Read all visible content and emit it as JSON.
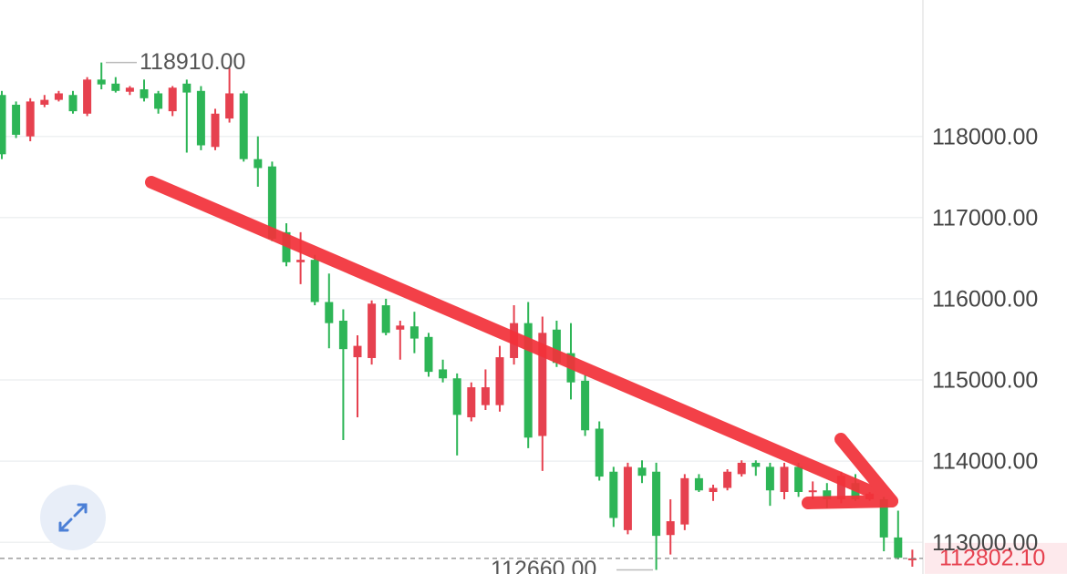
{
  "chart_data": {
    "type": "candlestick",
    "up_color": "#e6414f",
    "down_color": "#2db556",
    "ylim": [
      112610,
      119680
    ],
    "yticks": [
      {
        "value": 113000,
        "label": "113000.00"
      },
      {
        "value": 114000,
        "label": "114000.00"
      },
      {
        "value": 115000,
        "label": "115000.00"
      },
      {
        "value": 116000,
        "label": "116000.00"
      },
      {
        "value": 117000,
        "label": "117000.00"
      },
      {
        "value": 118000,
        "label": "118000.00"
      }
    ],
    "grid": true,
    "high_label": {
      "value": 118910,
      "label": "118910.00"
    },
    "low_label": {
      "value": 112660,
      "label": "112660.00"
    },
    "last_price": {
      "value": 112802.1,
      "label": "112802.10"
    },
    "candles": [
      [
        118510,
        118560,
        117720,
        117780
      ],
      [
        118390,
        118430,
        117980,
        118020
      ],
      [
        118000,
        118470,
        117940,
        118430
      ],
      [
        118390,
        118510,
        118360,
        118450
      ],
      [
        118450,
        118560,
        118430,
        118530
      ],
      [
        118510,
        118560,
        118280,
        118310
      ],
      [
        118280,
        118730,
        118250,
        118700
      ],
      [
        118700,
        118910,
        118580,
        118640
      ],
      [
        118650,
        118730,
        118540,
        118560
      ],
      [
        118550,
        118620,
        118510,
        118600
      ],
      [
        118580,
        118700,
        118430,
        118470
      ],
      [
        118530,
        118560,
        118280,
        118340
      ],
      [
        118310,
        118620,
        118250,
        118600
      ],
      [
        118650,
        118700,
        117800,
        118540
      ],
      [
        118560,
        118620,
        117830,
        117890
      ],
      [
        117870,
        118340,
        117830,
        118280
      ],
      [
        118220,
        118840,
        118170,
        118530
      ],
      [
        118530,
        118560,
        117690,
        117720
      ],
      [
        117720,
        118000,
        117380,
        117610
      ],
      [
        117630,
        117690,
        116710,
        116740
      ],
      [
        116820,
        116930,
        116400,
        116450
      ],
      [
        116450,
        116820,
        116180,
        116480
      ],
      [
        116480,
        116540,
        115920,
        115960
      ],
      [
        115960,
        116310,
        115390,
        115700
      ],
      [
        115730,
        115870,
        114260,
        115380
      ],
      [
        115280,
        115550,
        114540,
        115420
      ],
      [
        115270,
        115980,
        115190,
        115940
      ],
      [
        115920,
        116000,
        115550,
        115580
      ],
      [
        115620,
        115730,
        115250,
        115670
      ],
      [
        115660,
        115840,
        115330,
        115510
      ],
      [
        115530,
        115580,
        115040,
        115100
      ],
      [
        115130,
        115250,
        114970,
        115020
      ],
      [
        115020,
        115080,
        114070,
        114570
      ],
      [
        114540,
        114970,
        114490,
        114910
      ],
      [
        114690,
        115130,
        114630,
        114910
      ],
      [
        114690,
        115420,
        114610,
        115280
      ],
      [
        115270,
        115920,
        115190,
        115700
      ],
      [
        115700,
        115960,
        114160,
        114290
      ],
      [
        114310,
        115780,
        113880,
        115580
      ],
      [
        115620,
        115730,
        115160,
        115210
      ],
      [
        115330,
        115700,
        114760,
        114970
      ],
      [
        114990,
        115060,
        114310,
        114380
      ],
      [
        114400,
        114490,
        113760,
        113810
      ],
      [
        113870,
        113930,
        113190,
        113300
      ],
      [
        113150,
        113980,
        113100,
        113930
      ],
      [
        113920,
        114010,
        113730,
        113820
      ],
      [
        113870,
        113980,
        112660,
        113080
      ],
      [
        113090,
        113530,
        112850,
        113260
      ],
      [
        113220,
        113840,
        113150,
        113790
      ],
      [
        113790,
        113840,
        113620,
        113640
      ],
      [
        113620,
        113710,
        113510,
        113670
      ],
      [
        113670,
        113900,
        113640,
        113870
      ],
      [
        113840,
        114010,
        113810,
        113980
      ],
      [
        113980,
        114010,
        113820,
        113930
      ],
      [
        113930,
        113980,
        113450,
        113640
      ],
      [
        113620,
        113980,
        113530,
        113930
      ],
      [
        113930,
        113980,
        113560,
        113620
      ],
      [
        113620,
        113750,
        113530,
        113640
      ],
      [
        113640,
        113730,
        113420,
        113530
      ],
      [
        113530,
        113870,
        113480,
        113820
      ],
      [
        113730,
        113840,
        113510,
        113530
      ],
      [
        113530,
        113620,
        113510,
        113600
      ],
      [
        113530,
        113560,
        112890,
        113060
      ],
      [
        113060,
        113390,
        112790,
        112810
      ],
      [
        112790,
        112910,
        112700,
        112802.1
      ]
    ]
  }
}
